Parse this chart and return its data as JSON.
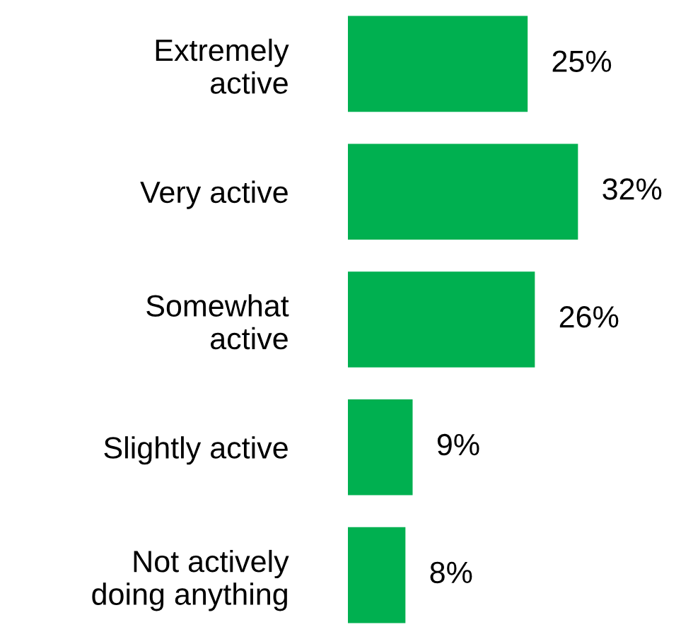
{
  "chart_data": {
    "type": "bar",
    "orientation": "horizontal",
    "categories": [
      "Extremely\nactive",
      "Very active",
      "Somewhat\nactive",
      "Slightly active",
      "Not actively\ndoing anything"
    ],
    "values": [
      25,
      32,
      26,
      9,
      8
    ],
    "value_labels": [
      "25%",
      "32%",
      "26%",
      "9%",
      "8%"
    ],
    "color": "#00b050",
    "grid": false,
    "legend": false
  }
}
